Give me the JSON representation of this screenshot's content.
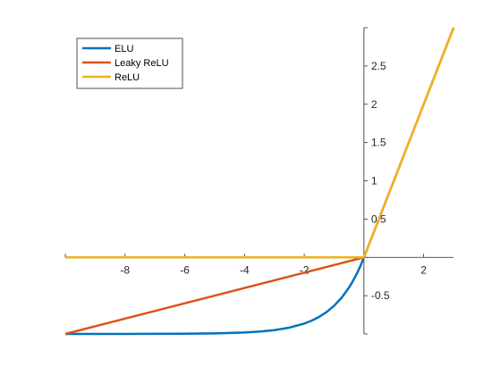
{
  "chart_data": {
    "type": "line",
    "title": "",
    "xlabel": "",
    "ylabel": "",
    "xlim": [
      -10,
      3
    ],
    "ylim": [
      -1,
      3
    ],
    "axes_location": "origin",
    "grid": false,
    "legend_location": "top-left",
    "x_ticks": [
      -8,
      -6,
      -4,
      -2,
      2
    ],
    "x_tick_labels": [
      "-8",
      "-6",
      "-4",
      "-2",
      "2"
    ],
    "y_ticks": [
      -0.5,
      0.5,
      1,
      1.5,
      2,
      2.5
    ],
    "y_tick_labels": [
      "-0.5",
      "0.5",
      "1",
      "1.5",
      "2",
      "2.5"
    ],
    "series": [
      {
        "name": "ELU",
        "color": "#0072BD",
        "x": [
          -10,
          -9,
          -8,
          -7,
          -6,
          -5,
          -4,
          -3.5,
          -3,
          -2.5,
          -2,
          -1.75,
          -1.5,
          -1.25,
          -1,
          -0.75,
          -0.5,
          -0.375,
          -0.25,
          -0.125,
          0
        ],
        "y": [
          -1.0,
          -0.9999,
          -0.9997,
          -0.9991,
          -0.9975,
          -0.9933,
          -0.9817,
          -0.9698,
          -0.9502,
          -0.9179,
          -0.8647,
          -0.8262,
          -0.7769,
          -0.7135,
          -0.6321,
          -0.5276,
          -0.3935,
          -0.3127,
          -0.2212,
          -0.1175,
          0
        ]
      },
      {
        "name": "Leaky ReLU",
        "color": "#D95319",
        "x": [
          -10,
          0,
          3
        ],
        "y": [
          -1,
          0,
          3
        ]
      },
      {
        "name": "ReLU",
        "color": "#EDB120",
        "x": [
          -10,
          0,
          3
        ],
        "y": [
          0,
          0,
          3
        ]
      }
    ]
  }
}
